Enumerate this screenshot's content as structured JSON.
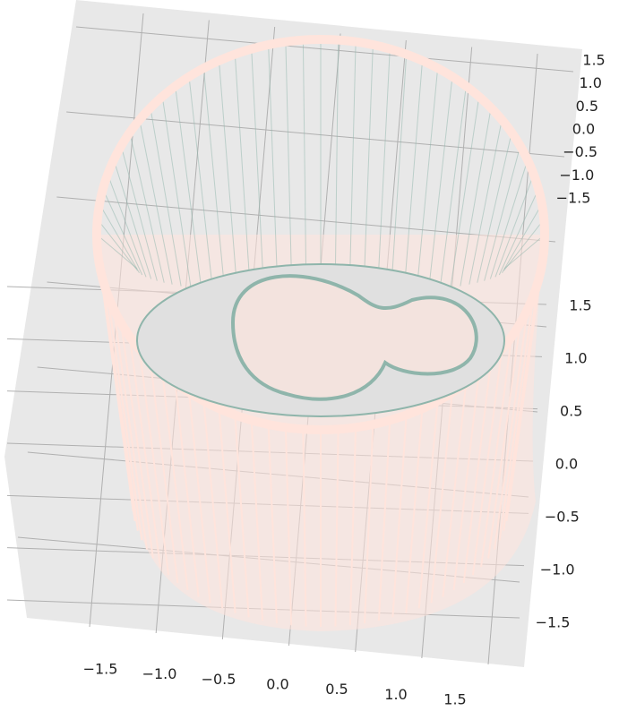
{
  "chart_data": {
    "type": "surface3d",
    "xlim": [
      -1.5,
      1.5
    ],
    "ylim": [
      -1.5,
      1.5
    ],
    "zlim": [
      -1.5,
      1.5
    ],
    "xticks": [
      {
        "value": -1.5,
        "label": "−1.5"
      },
      {
        "value": -1.0,
        "label": "−1.0"
      },
      {
        "value": -0.5,
        "label": "−0.5"
      },
      {
        "value": 0.0,
        "label": "0.0"
      },
      0.5,
      {
        "value": 1.0,
        "label": "1.0"
      },
      1.5
    ],
    "yticks": [
      1.5,
      {
        "value": 1.0,
        "label": "1.0"
      },
      0.5,
      {
        "value": 0.0,
        "label": "0.0"
      },
      {
        "value": -0.5,
        "label": "−0.5"
      },
      {
        "value": -1.0,
        "label": "−1.0"
      },
      {
        "value": -1.5,
        "label": "−1.5"
      }
    ],
    "zticks": [
      1.5,
      {
        "value": 1.0,
        "label": "1.0"
      },
      0.5,
      {
        "value": 0.0,
        "label": "0.0"
      },
      {
        "value": -0.5,
        "label": "−0.5"
      },
      {
        "value": -1.0,
        "label": "−1.0"
      },
      {
        "value": -1.5,
        "label": "−1.5"
      }
    ],
    "grid": true,
    "surface_color": "#ffe4dc",
    "wire_color": "#8fb5ab"
  }
}
